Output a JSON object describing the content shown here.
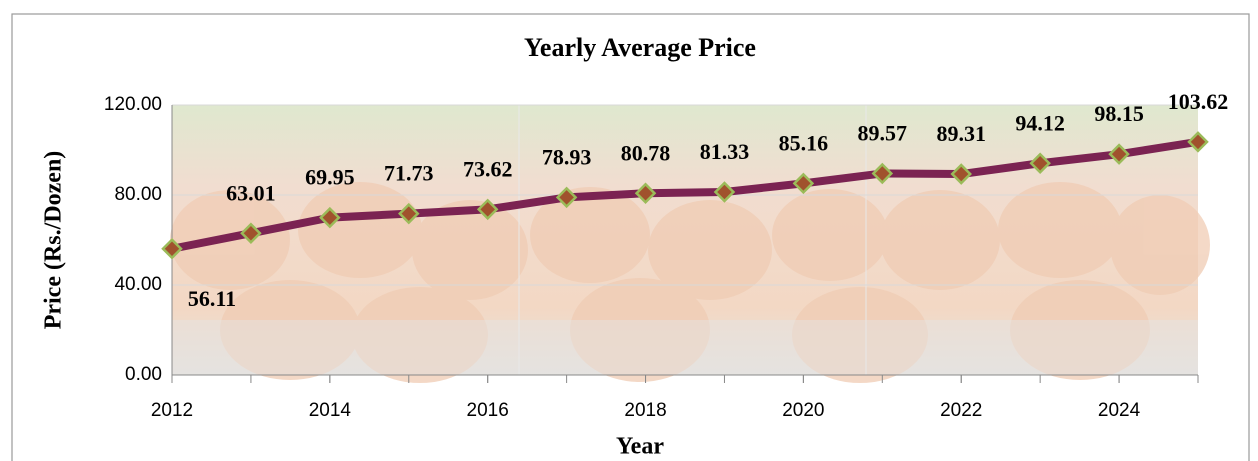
{
  "chart_data": {
    "type": "line",
    "title": "Yearly Average Price",
    "x_label": "Year",
    "y_label": "Price (Rs./Dozen)",
    "x": [
      2012,
      2013,
      2014,
      2015,
      2016,
      2017,
      2018,
      2019,
      2020,
      2021,
      2022,
      2023,
      2024,
      2025
    ],
    "series": [
      {
        "name": "Yearly Average Price",
        "color": "#7b2352",
        "values": [
          56.11,
          63.01,
          69.95,
          71.73,
          73.62,
          78.93,
          80.78,
          81.33,
          85.16,
          89.57,
          89.31,
          94.12,
          98.15,
          103.62
        ]
      }
    ],
    "xlim": [
      2012,
      2025
    ],
    "xticks": [
      2012,
      2014,
      2016,
      2018,
      2020,
      2022,
      2024
    ],
    "ylim": [
      0,
      120
    ],
    "yticks": [
      {
        "value": 0,
        "label": "0.00"
      },
      {
        "value": 40,
        "label": "40.00"
      },
      {
        "value": 80,
        "label": "80.00"
      },
      {
        "value": 120,
        "label": "120.00"
      }
    ],
    "grid": true,
    "marker_color": "#9bbb59"
  }
}
